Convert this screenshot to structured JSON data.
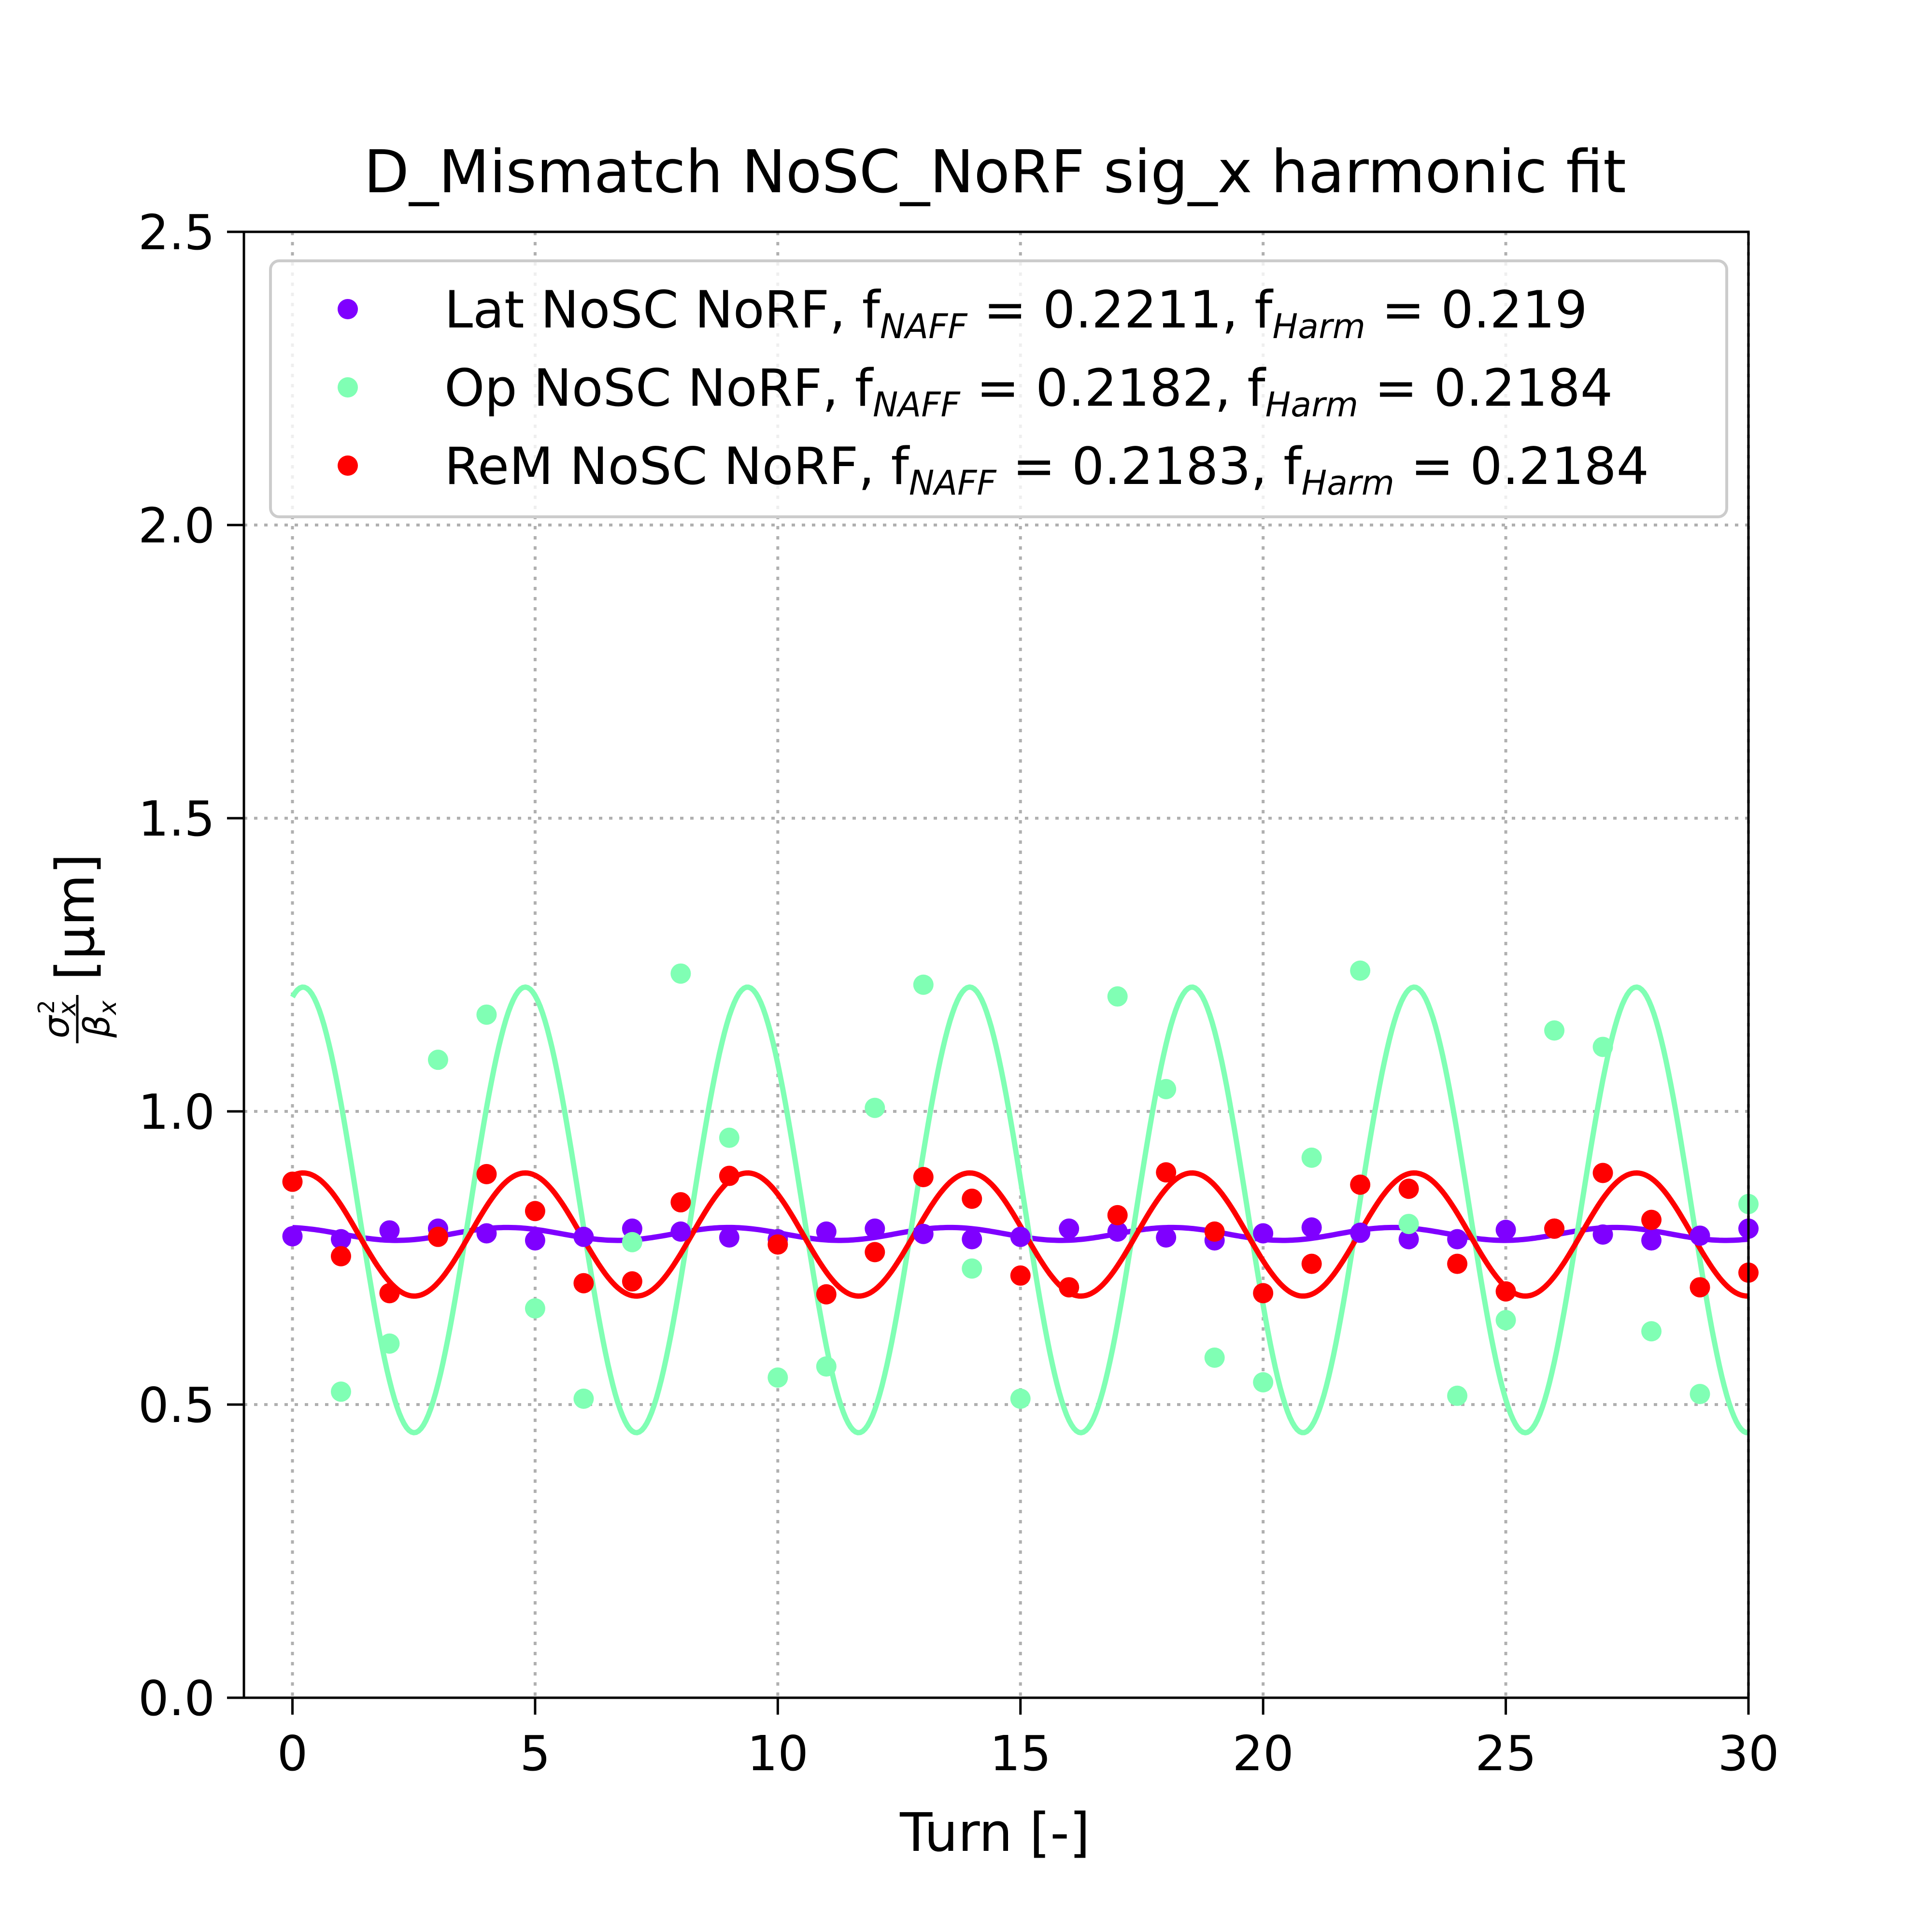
{
  "chart_data": {
    "type": "scatter",
    "title": "D_Mismatch NoSC_NoRF sig_x harmonic fit",
    "xlabel": "Turn [-]",
    "ylabel": {
      "numerator": "σ",
      "numerator_sup": "2",
      "numerator_sub": "x",
      "denominator": "β",
      "denominator_sub": "x",
      "units": "[μm]"
    },
    "xlim": [
      -1,
      30
    ],
    "ylim": [
      0.0,
      2.5
    ],
    "xticks": [
      0,
      5,
      10,
      15,
      20,
      25,
      30
    ],
    "xtick_labels": [
      "0",
      "5",
      "10",
      "15",
      "20",
      "25",
      "30"
    ],
    "yticks": [
      0.0,
      0.5,
      1.0,
      1.5,
      2.0,
      2.5
    ],
    "ytick_labels": [
      "0.0",
      "0.5",
      "1.0",
      "1.5",
      "2.0",
      "2.5"
    ],
    "grid": true,
    "legend_position": "top",
    "x": [
      0,
      1,
      2,
      3,
      4,
      5,
      6,
      7,
      8,
      9,
      10,
      11,
      12,
      13,
      14,
      15,
      16,
      17,
      18,
      19,
      20,
      21,
      22,
      23,
      24,
      25,
      26,
      27,
      28,
      29,
      30
    ],
    "series": [
      {
        "name_parts": [
          "Lat NoSC NoRF, f",
          "NAFF",
          " = 0.2211, f",
          "Harm",
          " = 0.219"
        ],
        "color": "#7f00ff",
        "values": [
          0.787,
          0.782,
          0.797,
          0.8,
          0.792,
          0.78,
          0.786,
          0.8,
          0.795,
          0.785,
          0.782,
          0.795,
          0.8,
          0.791,
          0.782,
          0.786,
          0.8,
          0.795,
          0.785,
          0.78,
          0.792,
          0.802,
          0.793,
          0.782,
          0.782,
          0.798,
          0.8,
          0.79,
          0.78,
          0.788,
          0.8
        ],
        "fit": {
          "mean": 0.791,
          "amplitude": 0.011,
          "frequency": 0.219,
          "phase": 0.2
        }
      },
      {
        "name_parts": [
          "Op NoSC NoRF, f",
          "NAFF",
          " = 0.2182, f",
          "Harm",
          " = 0.2184"
        ],
        "color": "#80ffb4",
        "values": [
          0.88,
          0.522,
          0.604,
          1.088,
          1.165,
          0.664,
          0.51,
          0.777,
          1.235,
          0.955,
          0.546,
          0.565,
          1.006,
          1.216,
          0.732,
          0.51,
          0.7,
          1.196,
          1.038,
          0.58,
          0.538,
          0.921,
          1.24,
          0.808,
          0.515,
          0.644,
          1.138,
          1.11,
          0.625,
          0.518,
          0.842
        ],
        "fit": {
          "mean": 0.832,
          "amplitude": 0.38,
          "frequency": 0.2184,
          "phase": -0.3
        }
      },
      {
        "name_parts": [
          "ReM NoSC NoRF, f",
          "NAFF",
          " = 0.2183, f",
          "Harm",
          " = 0.2184"
        ],
        "color": "#ff0000",
        "values": [
          0.88,
          0.753,
          0.69,
          0.786,
          0.893,
          0.83,
          0.707,
          0.71,
          0.845,
          0.89,
          0.773,
          0.688,
          0.76,
          0.888,
          0.851,
          0.72,
          0.7,
          0.823,
          0.896,
          0.795,
          0.69,
          0.74,
          0.875,
          0.868,
          0.74,
          0.693,
          0.8,
          0.895,
          0.815,
          0.7,
          0.725
        ],
        "fit": {
          "mean": 0.79,
          "amplitude": 0.105,
          "frequency": 0.2184,
          "phase": -0.3
        }
      }
    ]
  }
}
